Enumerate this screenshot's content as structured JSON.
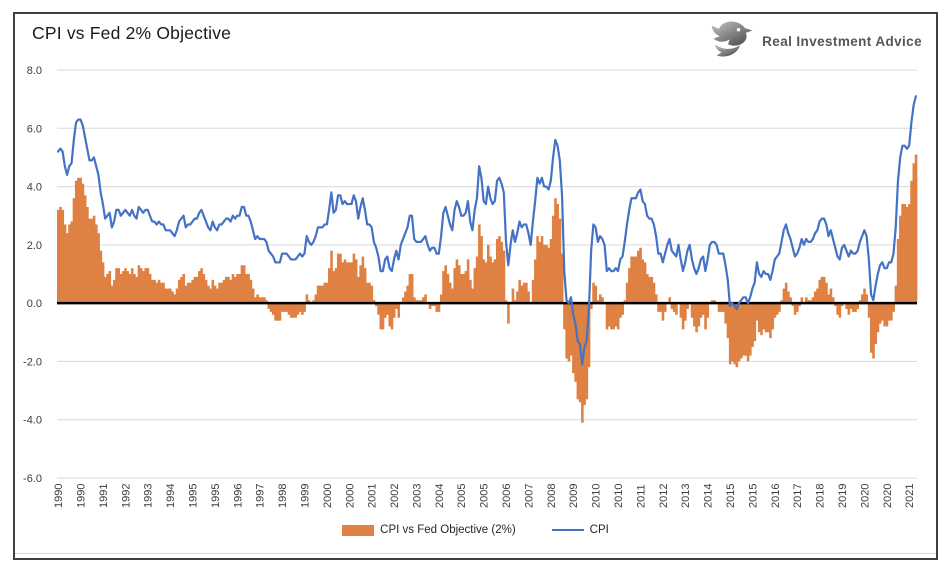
{
  "title": "CPI vs Fed 2% Objective",
  "logo": {
    "text": "Real Investment Advice"
  },
  "colors": {
    "bar": "#DF8142",
    "line": "#4472C4",
    "grid": "#D9D9D9",
    "zero_axis": "#000000",
    "axis_text": "#3D3D3D",
    "frame_border": "#3F3F3F",
    "title_text": "#1A1A1A",
    "logo_text": "#55565A",
    "bottom_rule": "#D9D9D9"
  },
  "chart_data": {
    "type": "combo_bar_line",
    "title": "CPI vs Fed 2% Objective",
    "frequency": "monthly",
    "x_start": "1990-01",
    "x_end": "2021-12",
    "ylim": [
      -6.0,
      8.0
    ],
    "y_tick_labels": [
      "8.0",
      "6.0",
      "4.0",
      "2.0",
      "0.0",
      "-2.0",
      "-4.0",
      "-6.0"
    ],
    "y_tick_values": [
      8,
      6,
      4,
      2,
      0,
      -2,
      -4,
      -6
    ],
    "grid": "horizontal-only",
    "legend_position": "bottom",
    "fed_objective": 2.0,
    "x_tick_every_n_months": 10,
    "x_tick_labels": [
      "1990",
      "1990",
      "1991",
      "1992",
      "1993",
      "1994",
      "1995",
      "1995",
      "1996",
      "1997",
      "1998",
      "1999",
      "2000",
      "2000",
      "2001",
      "2002",
      "2003",
      "2004",
      "2005",
      "2005",
      "2006",
      "2007",
      "2008",
      "2009",
      "2010",
      "2010",
      "2011",
      "2012",
      "2013",
      "2014",
      "2015",
      "2015",
      "2016",
      "2017",
      "2018",
      "2019",
      "2020",
      "2020",
      "2021"
    ],
    "series": [
      {
        "name": "CPI vs Fed Objective (2%)",
        "type": "bar",
        "derivation": "cpi_minus_objective"
      },
      {
        "name": "CPI",
        "type": "line",
        "values": [
          5.2,
          5.3,
          5.2,
          4.7,
          4.4,
          4.7,
          4.8,
          5.6,
          6.2,
          6.3,
          6.3,
          6.1,
          5.7,
          5.3,
          4.9,
          4.9,
          5.0,
          4.7,
          4.4,
          3.8,
          3.4,
          2.9,
          3.0,
          3.1,
          2.6,
          2.8,
          3.2,
          3.2,
          3.0,
          3.1,
          3.2,
          3.1,
          3.0,
          3.2,
          3.0,
          2.9,
          3.3,
          3.2,
          3.1,
          3.2,
          3.2,
          3.0,
          2.8,
          2.8,
          2.7,
          2.8,
          2.7,
          2.7,
          2.5,
          2.5,
          2.5,
          2.4,
          2.3,
          2.5,
          2.8,
          2.9,
          3.0,
          2.6,
          2.7,
          2.7,
          2.8,
          2.9,
          2.9,
          3.1,
          3.2,
          3.0,
          2.8,
          2.6,
          2.5,
          2.8,
          2.6,
          2.5,
          2.7,
          2.7,
          2.8,
          2.9,
          2.9,
          2.8,
          3.0,
          2.9,
          3.0,
          3.0,
          3.3,
          3.3,
          3.0,
          3.0,
          2.8,
          2.5,
          2.2,
          2.3,
          2.2,
          2.2,
          2.2,
          2.1,
          1.8,
          1.7,
          1.6,
          1.4,
          1.4,
          1.4,
          1.7,
          1.7,
          1.7,
          1.6,
          1.5,
          1.5,
          1.5,
          1.6,
          1.7,
          1.6,
          1.7,
          2.3,
          2.1,
          2.0,
          2.1,
          2.3,
          2.6,
          2.6,
          2.6,
          2.7,
          2.7,
          3.2,
          3.8,
          3.1,
          3.2,
          3.7,
          3.7,
          3.4,
          3.5,
          3.4,
          3.4,
          3.4,
          3.7,
          3.5,
          2.9,
          3.3,
          3.6,
          3.2,
          2.7,
          2.7,
          2.6,
          2.1,
          1.9,
          1.6,
          1.1,
          1.1,
          1.5,
          1.6,
          1.2,
          1.1,
          1.5,
          1.8,
          1.5,
          2.0,
          2.2,
          2.4,
          2.6,
          3.0,
          3.0,
          2.2,
          2.1,
          2.1,
          2.1,
          2.2,
          2.3,
          2.0,
          1.8,
          1.9,
          1.9,
          1.7,
          1.7,
          2.3,
          3.1,
          3.3,
          3.0,
          2.7,
          2.5,
          3.2,
          3.5,
          3.3,
          3.0,
          3.0,
          3.1,
          3.5,
          2.8,
          2.5,
          3.2,
          3.6,
          4.7,
          4.3,
          3.5,
          3.4,
          4.0,
          3.6,
          3.4,
          3.5,
          4.2,
          4.3,
          4.1,
          3.8,
          2.1,
          1.3,
          2.0,
          2.5,
          2.1,
          2.4,
          2.8,
          2.6,
          2.7,
          2.7,
          2.4,
          2.0,
          2.8,
          3.5,
          4.3,
          4.1,
          4.3,
          4.0,
          4.0,
          3.9,
          4.2,
          5.0,
          5.6,
          5.4,
          4.9,
          3.7,
          1.1,
          0.1,
          0.0,
          0.2,
          -0.4,
          -0.7,
          -1.3,
          -1.4,
          -2.1,
          -1.5,
          -1.3,
          -0.2,
          1.8,
          2.7,
          2.6,
          2.1,
          2.3,
          2.2,
          2.0,
          1.1,
          1.2,
          1.1,
          1.1,
          1.2,
          1.1,
          1.5,
          1.6,
          2.1,
          2.7,
          3.2,
          3.6,
          3.6,
          3.6,
          3.8,
          3.9,
          3.5,
          3.4,
          3.0,
          2.9,
          2.9,
          2.7,
          2.3,
          1.7,
          1.7,
          1.4,
          1.7,
          2.0,
          2.2,
          1.8,
          1.7,
          1.6,
          2.0,
          1.5,
          1.1,
          1.4,
          1.8,
          2.0,
          1.5,
          1.2,
          1.0,
          1.2,
          1.5,
          1.6,
          1.1,
          1.5,
          2.0,
          2.1,
          2.1,
          2.0,
          1.7,
          1.7,
          1.7,
          1.3,
          0.8,
          -0.1,
          0.0,
          -0.1,
          -0.2,
          0.0,
          0.1,
          0.2,
          0.2,
          0.0,
          0.2,
          0.5,
          0.7,
          1.4,
          1.0,
          0.9,
          1.1,
          1.0,
          1.0,
          0.8,
          1.1,
          1.5,
          1.6,
          1.7,
          2.1,
          2.5,
          2.7,
          2.4,
          2.2,
          1.9,
          1.6,
          1.7,
          1.9,
          2.2,
          2.0,
          2.2,
          2.1,
          2.1,
          2.2,
          2.4,
          2.5,
          2.8,
          2.9,
          2.9,
          2.7,
          2.3,
          2.5,
          2.2,
          1.9,
          1.6,
          1.5,
          1.9,
          2.0,
          1.8,
          1.6,
          1.8,
          1.7,
          1.7,
          1.8,
          2.1,
          2.3,
          2.5,
          2.3,
          1.5,
          0.3,
          0.1,
          0.6,
          1.0,
          1.3,
          1.4,
          1.2,
          1.2,
          1.4,
          1.4,
          1.7,
          2.6,
          4.2,
          5.0,
          5.4,
          5.4,
          5.3,
          5.4,
          6.2,
          6.8,
          7.1
        ]
      }
    ]
  }
}
